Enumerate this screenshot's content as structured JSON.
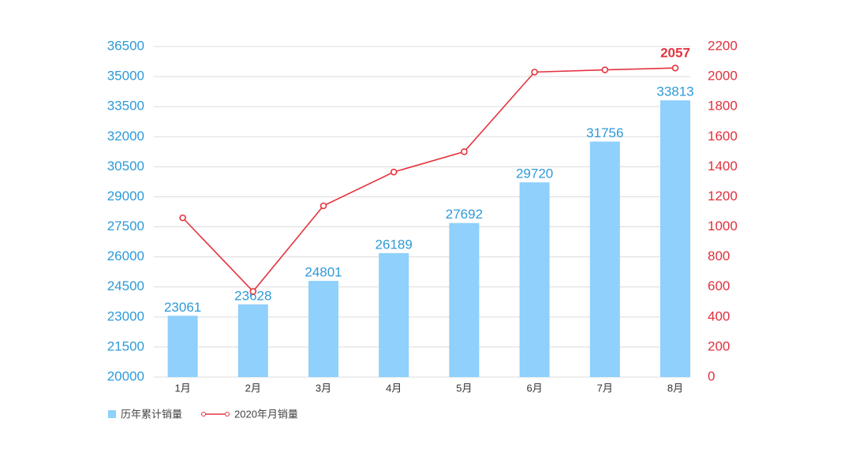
{
  "chart_data": {
    "type": "bar",
    "categories": [
      "1月",
      "2月",
      "3月",
      "4月",
      "5月",
      "6月",
      "7月",
      "8月"
    ],
    "series": [
      {
        "name": "历年累计销量",
        "type": "bar",
        "color": "#8fd0fc",
        "values": [
          23061,
          23628,
          24801,
          26189,
          27692,
          29720,
          31756,
          33813
        ]
      },
      {
        "name": "2020年月销量",
        "type": "line",
        "axis": "y2",
        "color": "#e5333f",
        "values": [
          1060,
          570,
          1140,
          1365,
          1500,
          2030,
          2045,
          2057
        ],
        "value_labels": [
          null,
          null,
          null,
          null,
          null,
          null,
          null,
          "2057"
        ]
      }
    ],
    "ylim": [
      20000,
      36500
    ],
    "yticks": [
      20000,
      21500,
      23000,
      24500,
      26000,
      27500,
      29000,
      30500,
      32000,
      33500,
      35000,
      36500
    ],
    "y2lim": [
      0,
      2200
    ],
    "y2ticks": [
      0,
      200,
      400,
      600,
      800,
      1000,
      1200,
      1400,
      1600,
      1800,
      2000,
      2200
    ],
    "grid": true,
    "legend": "bottom-left"
  }
}
